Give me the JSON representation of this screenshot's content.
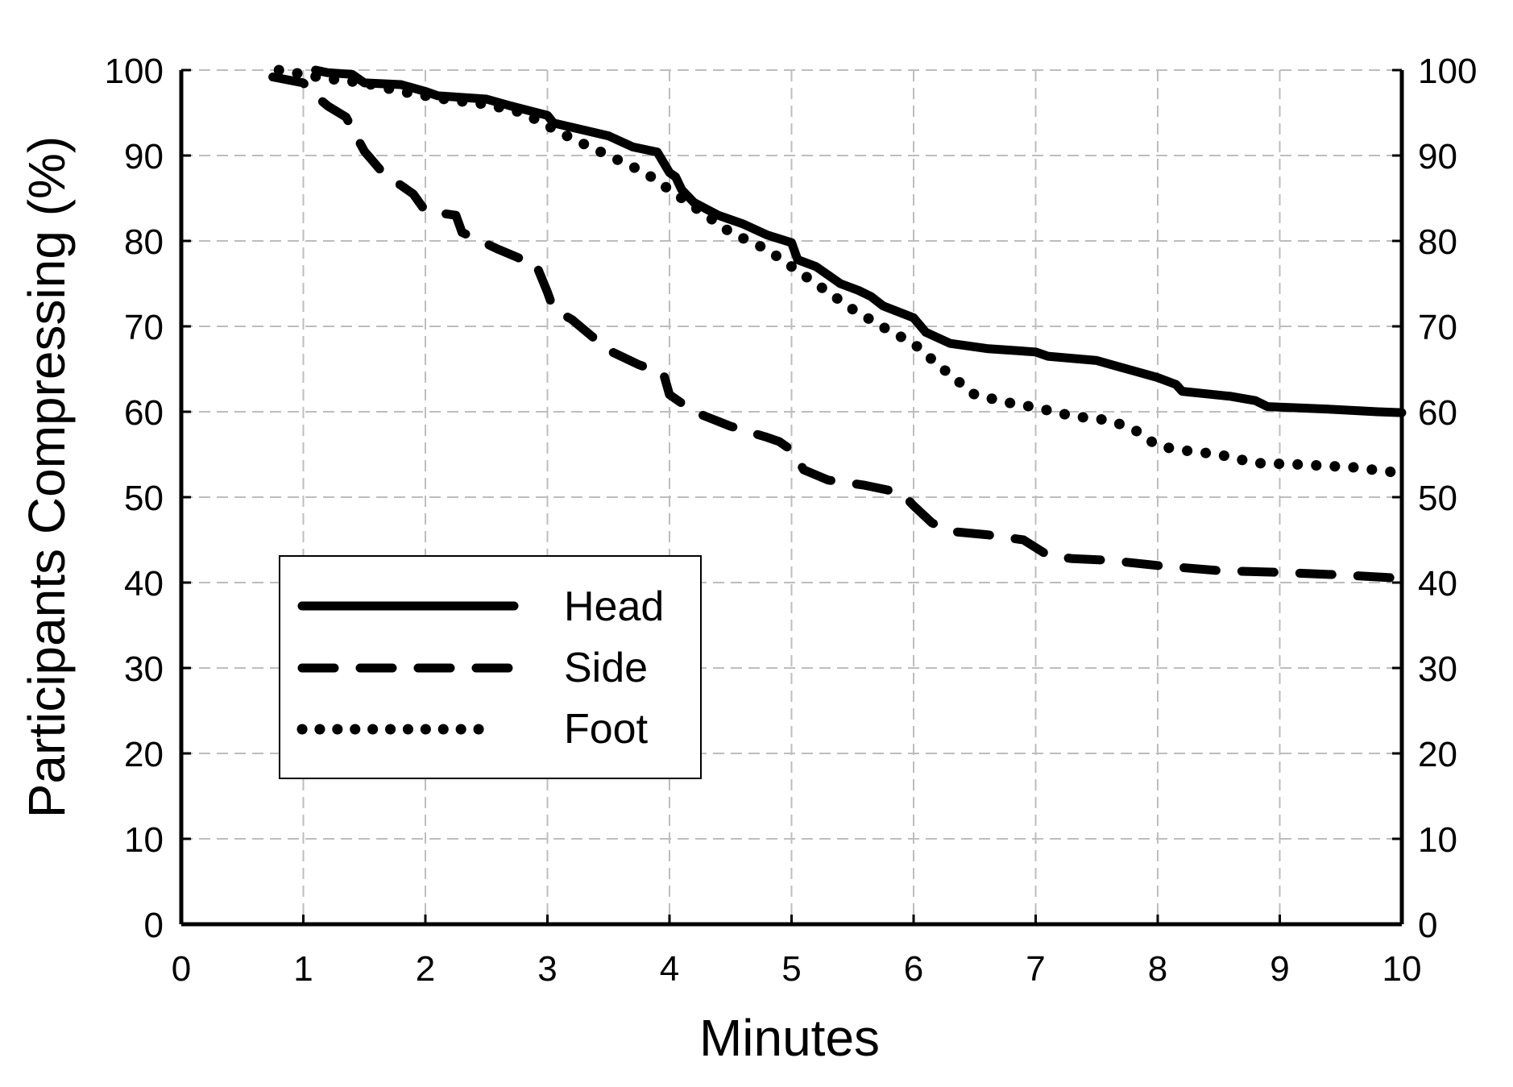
{
  "chart_data": {
    "type": "line",
    "title": "",
    "xlabel": "Minutes",
    "ylabel": "Participants Compressing (%)",
    "xlim": [
      0,
      10
    ],
    "ylim": [
      0,
      100
    ],
    "xticks": [
      "0",
      "1",
      "2",
      "3",
      "4",
      "5",
      "6",
      "7",
      "8",
      "9",
      "10"
    ],
    "yticks": [
      "0",
      "10",
      "20",
      "30",
      "40",
      "50",
      "60",
      "70",
      "80",
      "90",
      "100"
    ],
    "secondary_y_axis": true,
    "grid": true,
    "legend_position": "lower-left",
    "series": [
      {
        "name": "Head",
        "style": "solid",
        "x": [
          1.1,
          1.2,
          1.4,
          1.5,
          1.8,
          2.0,
          2.1,
          2.5,
          2.7,
          3.0,
          3.05,
          3.2,
          3.5,
          3.7,
          3.9,
          4.0,
          4.05,
          4.1,
          4.2,
          4.4,
          4.6,
          4.8,
          5.0,
          5.05,
          5.2,
          5.3,
          5.4,
          5.55,
          5.65,
          5.75,
          6.0,
          6.1,
          6.3,
          6.6,
          7.0,
          7.1,
          7.5,
          7.7,
          8.0,
          8.15,
          8.2,
          8.6,
          8.8,
          8.9,
          9.4,
          9.8,
          10.0
        ],
        "y": [
          100,
          99.7,
          99.5,
          98.5,
          98.3,
          97.5,
          97,
          96.6,
          95.8,
          94.7,
          93.8,
          93.3,
          92.3,
          91,
          90.4,
          88,
          87.5,
          86,
          84.5,
          83,
          82,
          80.7,
          79.8,
          77.8,
          77,
          76,
          75,
          74.2,
          73.5,
          72.4,
          71,
          69.3,
          68,
          67.4,
          67,
          66.5,
          66,
          65.2,
          64,
          63.2,
          62.4,
          61.8,
          61.3,
          60.6,
          60.3,
          60,
          59.9
        ]
      },
      {
        "name": "Side",
        "style": "dashed",
        "x": [
          0.75,
          1.0,
          1.1,
          1.2,
          1.35,
          1.5,
          1.65,
          1.9,
          2.0,
          2.25,
          2.3,
          2.6,
          2.8,
          2.9,
          3.0,
          3.05,
          3.2,
          3.5,
          3.75,
          3.95,
          4.0,
          4.05,
          4.2,
          4.5,
          4.8,
          4.9,
          5.0,
          5.1,
          5.3,
          5.6,
          5.9,
          6.0,
          6.15,
          6.3,
          6.6,
          6.9,
          7.1,
          7.3,
          7.6,
          8.0,
          8.5,
          9.0,
          9.5,
          10.0
        ],
        "y": [
          99.2,
          98.5,
          97,
          95.8,
          94.5,
          90.5,
          88,
          85.5,
          83.5,
          83,
          81,
          79,
          77.8,
          77.5,
          74,
          72,
          70.8,
          67.2,
          65.5,
          64.5,
          62,
          61.5,
          60,
          58.3,
          57,
          56.5,
          55.5,
          53.2,
          52,
          51.4,
          50.5,
          49,
          47,
          46,
          45.6,
          45,
          43.2,
          42.8,
          42.6,
          42,
          41.4,
          41.2,
          40.9,
          40.5
        ]
      },
      {
        "name": "Foot",
        "style": "dotted",
        "x": [
          0.8,
          1.0,
          1.2,
          1.5,
          1.8,
          2.0,
          2.2,
          2.5,
          2.8,
          3.0,
          3.2,
          3.5,
          3.8,
          4.0,
          4.2,
          4.5,
          4.8,
          5.0,
          5.2,
          5.5,
          5.8,
          6.0,
          6.2,
          6.5,
          6.8,
          7.0,
          7.3,
          7.6,
          7.8,
          8.0,
          8.2,
          8.5,
          8.8,
          9.2,
          9.6,
          10.0
        ],
        "y": [
          100,
          99.5,
          99,
          98.5,
          97.5,
          97,
          96.5,
          96,
          95,
          93.5,
          92,
          90,
          88,
          86,
          84,
          81,
          79,
          77,
          75,
          72,
          69.5,
          68,
          65.5,
          62,
          61,
          60.5,
          59.5,
          59,
          58,
          56,
          55.5,
          55,
          54,
          53.8,
          53.5,
          52.8
        ]
      }
    ]
  }
}
